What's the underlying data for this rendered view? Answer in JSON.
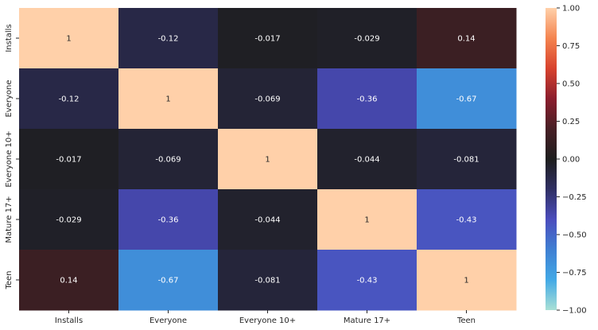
{
  "chart_data": {
    "type": "heatmap",
    "title": "",
    "xlabel": "",
    "ylabel": "",
    "categories_x": [
      "Installs",
      "Everyone",
      "Everyone 10+",
      "Mature 17+",
      "Teen"
    ],
    "categories_y": [
      "Installs",
      "Everyone",
      "Everyone 10+",
      "Mature 17+",
      "Teen"
    ],
    "values": [
      [
        1,
        -0.12,
        -0.017,
        -0.029,
        0.14
      ],
      [
        -0.12,
        1,
        -0.069,
        -0.36,
        -0.67
      ],
      [
        -0.017,
        -0.069,
        1,
        -0.044,
        -0.081
      ],
      [
        -0.029,
        -0.36,
        -0.044,
        1,
        -0.43
      ],
      [
        0.14,
        -0.67,
        -0.081,
        -0.43,
        1
      ]
    ],
    "labels": [
      [
        "1",
        "-0.12",
        "-0.017",
        "-0.029",
        "0.14"
      ],
      [
        "-0.12",
        "1",
        "-0.069",
        "-0.36",
        "-0.67"
      ],
      [
        "-0.017",
        "-0.069",
        "1",
        "-0.044",
        "-0.081"
      ],
      [
        "-0.029",
        "-0.36",
        "-0.044",
        "1",
        "-0.43"
      ],
      [
        "0.14",
        "-0.67",
        "-0.081",
        "-0.43",
        "1"
      ]
    ],
    "colorbar": {
      "vmin": -1,
      "vmax": 1,
      "ticks": [
        1,
        0.75,
        0.5,
        0.25,
        0,
        -0.25,
        -0.5,
        -0.75,
        -1
      ],
      "tick_labels": [
        "1.00",
        "0.75",
        "0.50",
        "0.25",
        "0.00",
        "−0.25",
        "−0.50",
        "−0.75",
        "−1.00"
      ],
      "colormap": "icefire",
      "stops": [
        {
          "v": -1.0,
          "color": "#a9e0d5"
        },
        {
          "v": -0.8,
          "color": "#42a9e6"
        },
        {
          "v": -0.6,
          "color": "#3f7fd2"
        },
        {
          "v": -0.4,
          "color": "#4b4dbd"
        },
        {
          "v": -0.2,
          "color": "#2f2f63"
        },
        {
          "v": 0.0,
          "color": "#1e1e1e"
        },
        {
          "v": 0.2,
          "color": "#471f25"
        },
        {
          "v": 0.4,
          "color": "#8b1e2d"
        },
        {
          "v": 0.6,
          "color": "#d8422d"
        },
        {
          "v": 0.8,
          "color": "#f4844f"
        },
        {
          "v": 1.0,
          "color": "#ffd0a9"
        }
      ]
    },
    "legend": "colorbar-right",
    "grid": false
  }
}
